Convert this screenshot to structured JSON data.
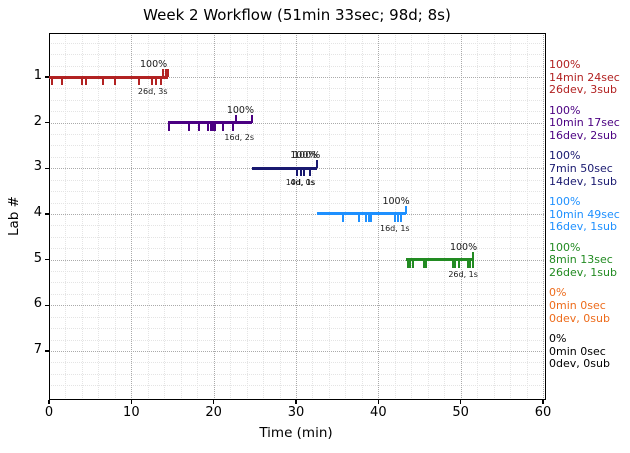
{
  "chart_data": {
    "type": "bar",
    "subtype": "gantt-timeline",
    "title": "Week 2 Workflow (51min 33sec; 98d; 8s)",
    "xlabel": "Time (min)",
    "ylabel": "Lab #",
    "xlim": [
      0,
      60
    ],
    "x_ticks": [
      0,
      10,
      20,
      30,
      40,
      50,
      60
    ],
    "y_ticks": [
      1,
      2,
      3,
      4,
      5,
      6,
      7
    ],
    "grid": "major dotted gray, minor faint (2 min / 0.25 lab)",
    "legend_position": "right, one colored entry aligned to each lab row",
    "segments": [
      {
        "lab": 1,
        "color": "#b22222",
        "start_min": 0,
        "end_min": 14.4,
        "pct_labels": [
          {
            "text": "100%",
            "t": 12.7
          }
        ],
        "detail_labels": [
          {
            "text": "26d, 3s",
            "t": 12.6
          }
        ],
        "dev_ticks": [
          0.35,
          1.55,
          3.95,
          4.55,
          6.55,
          8.0,
          10.9,
          12.55,
          13.05,
          13.55
        ],
        "sub_ticks": [
          13.85,
          14.15,
          14.4
        ]
      },
      {
        "lab": 2,
        "color": "#4b0082",
        "start_min": 14.4,
        "end_min": 24.68,
        "pct_labels": [
          {
            "text": "100%",
            "t": 23.25
          }
        ],
        "detail_labels": [
          {
            "text": "16d, 2s",
            "t": 23.1
          }
        ],
        "dev_ticks": [
          14.55,
          17.0,
          18.2,
          19.3,
          19.7,
          19.95,
          20.2,
          21.1,
          22.35
        ],
        "sub_ticks": [
          22.7,
          24.68
        ]
      },
      {
        "lab": 3,
        "color": "#191970",
        "start_min": 24.68,
        "end_min": 32.52,
        "pct_labels": [
          {
            "text": "100%",
            "t": 30.95
          },
          {
            "text": "100%",
            "t": 31.3
          }
        ],
        "detail_labels": [
          {
            "text": "10d, 1s",
            "t": 30.55
          },
          {
            "text": "4d, 0s",
            "t": 30.8
          }
        ],
        "dev_ticks": [
          30.1,
          30.55,
          31.0,
          31.75
        ],
        "sub_ticks": [
          32.52
        ]
      },
      {
        "lab": 4,
        "color": "#1e90ff",
        "start_min": 32.52,
        "end_min": 43.33,
        "pct_labels": [
          {
            "text": "100%",
            "t": 42.15
          }
        ],
        "detail_labels": [
          {
            "text": "16d, 1s",
            "t": 42.0
          }
        ],
        "dev_ticks": [
          35.7,
          37.6,
          38.5,
          38.9,
          39.15,
          42.0,
          42.4,
          42.8
        ],
        "sub_ticks": [
          43.33
        ]
      },
      {
        "lab": 5,
        "color": "#228b22",
        "start_min": 43.33,
        "end_min": 51.55,
        "pct_labels": [
          {
            "text": "100%",
            "t": 50.35
          }
        ],
        "detail_labels": [
          {
            "text": "26d, 1s",
            "t": 50.3
          }
        ],
        "dev_ticks": [
          43.65,
          43.9,
          44.25,
          45.5,
          45.75,
          49.1,
          49.35,
          49.75,
          50.85,
          51.1,
          51.45
        ],
        "sub_ticks": [
          51.55
        ]
      }
    ],
    "legend": [
      {
        "lab": 1,
        "color": "#b22222",
        "lines": [
          "100%",
          "14min 24sec",
          "26dev, 3sub"
        ]
      },
      {
        "lab": 2,
        "color": "#4b0082",
        "lines": [
          "100%",
          "10min 17sec",
          "16dev, 2sub"
        ]
      },
      {
        "lab": 3,
        "color": "#191970",
        "lines": [
          "100%",
          "7min 50sec",
          "14dev, 1sub"
        ]
      },
      {
        "lab": 4,
        "color": "#1e90ff",
        "lines": [
          "100%",
          "10min 49sec",
          "16dev, 1sub"
        ]
      },
      {
        "lab": 5,
        "color": "#228b22",
        "lines": [
          "100%",
          "8min 13sec",
          "26dev, 1sub"
        ]
      },
      {
        "lab": 6,
        "color": "#ed6c1c",
        "lines": [
          "0%",
          "0min 0sec",
          "0dev, 0sub"
        ]
      },
      {
        "lab": 7,
        "color": "#000000",
        "lines": [
          "0%",
          "0min 0sec",
          "0dev, 0sub"
        ]
      }
    ]
  }
}
